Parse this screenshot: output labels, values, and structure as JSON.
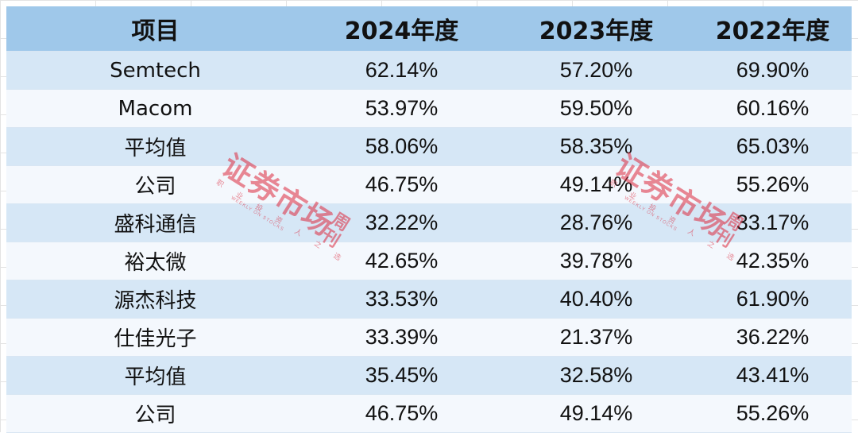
{
  "table": {
    "headers": [
      "项目",
      "2024年度",
      "2023年度",
      "2022年度"
    ],
    "rows": [
      [
        "Semtech",
        "62.14%",
        "57.20%",
        "69.90%"
      ],
      [
        "Macom",
        "53.97%",
        "59.50%",
        "60.16%"
      ],
      [
        "平均值",
        "58.06%",
        "58.35%",
        "65.03%"
      ],
      [
        "公司",
        "46.75%",
        "49.14%",
        "55.26%"
      ],
      [
        "盛科通信",
        "32.22%",
        "28.76%",
        "33.17%"
      ],
      [
        "裕太微",
        "42.65%",
        "39.78%",
        "42.35%"
      ],
      [
        "源杰科技",
        "33.53%",
        "40.40%",
        "61.90%"
      ],
      [
        "仕佳光子",
        "33.39%",
        "21.37%",
        "36.22%"
      ],
      [
        "平均值",
        "35.45%",
        "32.58%",
        "43.41%"
      ],
      [
        "公司",
        "46.75%",
        "49.14%",
        "55.26%"
      ]
    ]
  },
  "watermark": {
    "title": "证券市场",
    "side": "周刊",
    "motto": "职业投资人之选",
    "english": "WEEKLY ON STOCKS",
    "color": "#dc283c"
  },
  "colors": {
    "header_bg": "#9fc8ea",
    "row_odd": "#d6e7f6",
    "row_even": "#f4f8fd"
  }
}
